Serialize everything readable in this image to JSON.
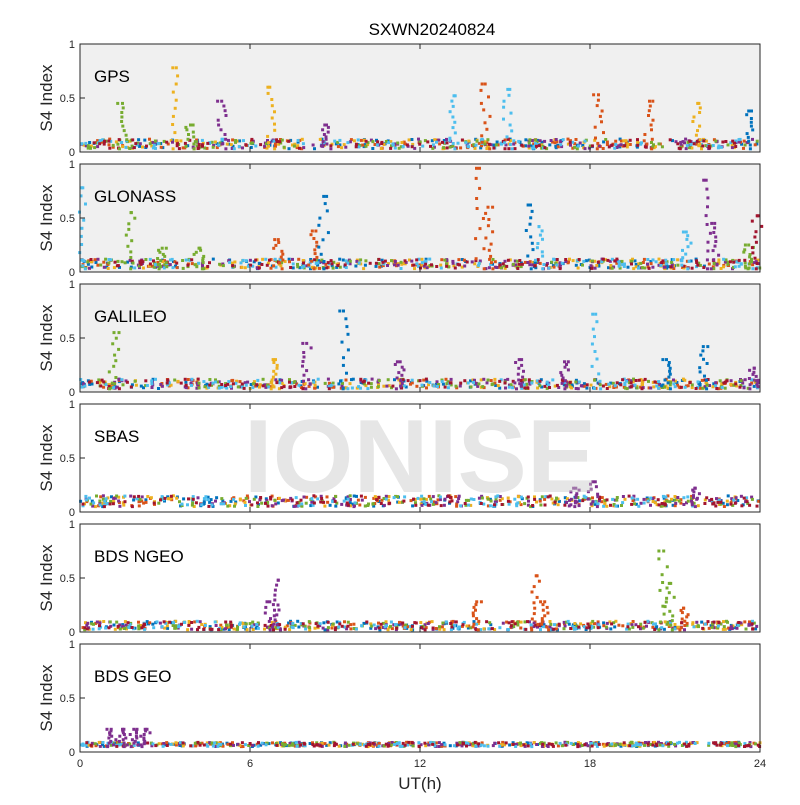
{
  "figure": {
    "title": "SXWN20240824",
    "xlabel": "UT(h)",
    "ylabel": "S4 Index",
    "watermark": "IONISE",
    "x_ticks": [
      "0",
      "6",
      "12",
      "18",
      "24"
    ],
    "y_ticks": [
      "0",
      "0.5",
      "1"
    ]
  },
  "colors": {
    "series": [
      "#0072BD",
      "#D95319",
      "#EDB120",
      "#7E2F8E",
      "#77AC30",
      "#4DBEEE",
      "#A2142F"
    ],
    "panel_background_grey": "#f0f0f0",
    "panel_background_white": "#ffffff",
    "watermark": "#c8c8c8"
  },
  "chart_data": [
    {
      "type": "scatter",
      "panel_label": "GPS",
      "background": "grey",
      "xlim": [
        0,
        24
      ],
      "ylim": [
        0,
        1
      ],
      "baseline": [
        0.03,
        0.12
      ],
      "spikes": [
        {
          "x": 1.5,
          "y": 0.45,
          "color": "#77AC30"
        },
        {
          "x": 3.4,
          "y": 0.78,
          "color": "#EDB120"
        },
        {
          "x": 3.9,
          "y": 0.25,
          "color": "#77AC30"
        },
        {
          "x": 5.0,
          "y": 0.47,
          "color": "#7E2F8E"
        },
        {
          "x": 6.7,
          "y": 0.6,
          "color": "#EDB120"
        },
        {
          "x": 8.7,
          "y": 0.25,
          "color": "#7E2F8E"
        },
        {
          "x": 13.2,
          "y": 0.52,
          "color": "#4DBEEE"
        },
        {
          "x": 14.3,
          "y": 0.63,
          "color": "#D95319"
        },
        {
          "x": 15.1,
          "y": 0.58,
          "color": "#4DBEEE"
        },
        {
          "x": 18.3,
          "y": 0.53,
          "color": "#D95319"
        },
        {
          "x": 20.1,
          "y": 0.47,
          "color": "#D95319"
        },
        {
          "x": 21.8,
          "y": 0.45,
          "color": "#EDB120"
        },
        {
          "x": 23.6,
          "y": 0.38,
          "color": "#0072BD"
        }
      ]
    },
    {
      "type": "scatter",
      "panel_label": "GLONASS",
      "background": "grey",
      "xlim": [
        0,
        24
      ],
      "ylim": [
        0,
        1
      ],
      "baseline": [
        0.03,
        0.12
      ],
      "spikes": [
        {
          "x": 0.1,
          "y": 0.78,
          "color": "#4DBEEE"
        },
        {
          "x": 1.8,
          "y": 0.55,
          "color": "#77AC30"
        },
        {
          "x": 2.9,
          "y": 0.22,
          "color": "#77AC30"
        },
        {
          "x": 4.2,
          "y": 0.22,
          "color": "#77AC30"
        },
        {
          "x": 7.0,
          "y": 0.3,
          "color": "#D95319"
        },
        {
          "x": 8.2,
          "y": 0.38,
          "color": "#D95319"
        },
        {
          "x": 8.6,
          "y": 0.7,
          "color": "#0072BD"
        },
        {
          "x": 14.1,
          "y": 0.96,
          "color": "#D95319"
        },
        {
          "x": 14.4,
          "y": 0.6,
          "color": "#D95319"
        },
        {
          "x": 15.9,
          "y": 0.62,
          "color": "#0072BD"
        },
        {
          "x": 16.2,
          "y": 0.42,
          "color": "#4DBEEE"
        },
        {
          "x": 21.4,
          "y": 0.37,
          "color": "#4DBEEE"
        },
        {
          "x": 22.1,
          "y": 0.85,
          "color": "#7E2F8E"
        },
        {
          "x": 22.4,
          "y": 0.45,
          "color": "#7E2F8E"
        },
        {
          "x": 23.6,
          "y": 0.25,
          "color": "#77AC30"
        },
        {
          "x": 23.9,
          "y": 0.52,
          "color": "#A2142F"
        }
      ]
    },
    {
      "type": "scatter",
      "panel_label": "GALILEO",
      "background": "grey",
      "xlim": [
        0,
        24
      ],
      "ylim": [
        0,
        1
      ],
      "baseline": [
        0.03,
        0.12
      ],
      "spikes": [
        {
          "x": 1.2,
          "y": 0.55,
          "color": "#77AC30"
        },
        {
          "x": 6.9,
          "y": 0.3,
          "color": "#EDB120"
        },
        {
          "x": 8.0,
          "y": 0.45,
          "color": "#7E2F8E"
        },
        {
          "x": 9.3,
          "y": 0.75,
          "color": "#0072BD"
        },
        {
          "x": 11.3,
          "y": 0.28,
          "color": "#7E2F8E"
        },
        {
          "x": 15.5,
          "y": 0.3,
          "color": "#7E2F8E"
        },
        {
          "x": 17.1,
          "y": 0.28,
          "color": "#7E2F8E"
        },
        {
          "x": 18.2,
          "y": 0.72,
          "color": "#4DBEEE"
        },
        {
          "x": 20.7,
          "y": 0.3,
          "color": "#0072BD"
        },
        {
          "x": 22.0,
          "y": 0.42,
          "color": "#0072BD"
        },
        {
          "x": 23.8,
          "y": 0.22,
          "color": "#7E2F8E"
        }
      ]
    },
    {
      "type": "scatter",
      "panel_label": "SBAS",
      "background": "white",
      "xlim": [
        0,
        24
      ],
      "ylim": [
        0,
        1
      ],
      "baseline": [
        0.05,
        0.15
      ],
      "spikes": [
        {
          "x": 17.5,
          "y": 0.22,
          "color": "#7E2F8E"
        },
        {
          "x": 18.1,
          "y": 0.28,
          "color": "#7E2F8E"
        },
        {
          "x": 21.7,
          "y": 0.22,
          "color": "#7E2F8E"
        }
      ]
    },
    {
      "type": "scatter",
      "panel_label": "BDS NGEO",
      "background": "white",
      "xlim": [
        0,
        24
      ],
      "ylim": [
        0,
        1
      ],
      "baseline": [
        0.02,
        0.1
      ],
      "spikes": [
        {
          "x": 6.7,
          "y": 0.28,
          "color": "#7E2F8E"
        },
        {
          "x": 7.0,
          "y": 0.48,
          "color": "#7E2F8E"
        },
        {
          "x": 14.0,
          "y": 0.28,
          "color": "#D95319"
        },
        {
          "x": 16.1,
          "y": 0.52,
          "color": "#D95319"
        },
        {
          "x": 16.4,
          "y": 0.28,
          "color": "#D95319"
        },
        {
          "x": 20.6,
          "y": 0.75,
          "color": "#77AC30"
        },
        {
          "x": 20.8,
          "y": 0.45,
          "color": "#77AC30"
        },
        {
          "x": 21.3,
          "y": 0.22,
          "color": "#D95319"
        }
      ]
    },
    {
      "type": "scatter",
      "panel_label": "BDS GEO",
      "background": "white",
      "xlim": [
        0,
        24
      ],
      "ylim": [
        0,
        1
      ],
      "baseline": [
        0.05,
        0.09
      ],
      "spikes": [
        {
          "x": 1.1,
          "y": 0.21,
          "color": "#7E2F8E"
        },
        {
          "x": 1.5,
          "y": 0.21,
          "color": "#7E2F8E"
        },
        {
          "x": 1.9,
          "y": 0.21,
          "color": "#7E2F8E"
        },
        {
          "x": 2.3,
          "y": 0.21,
          "color": "#7E2F8E"
        }
      ]
    }
  ]
}
